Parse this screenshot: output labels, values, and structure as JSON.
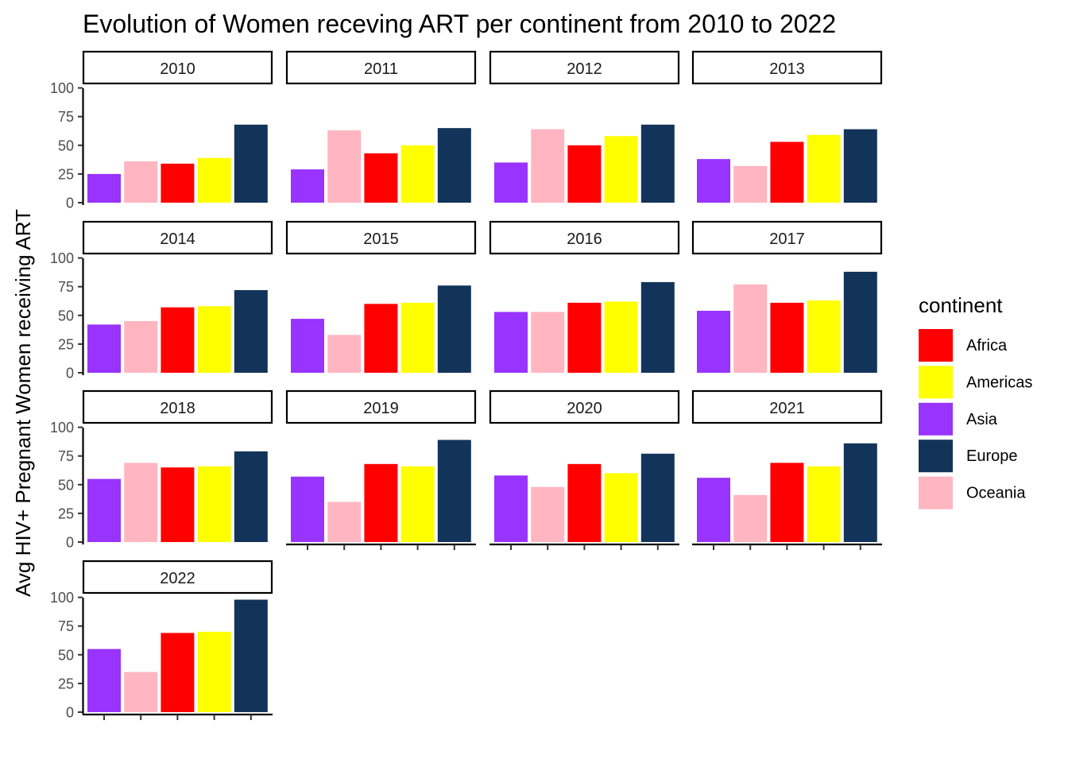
{
  "chart_data": {
    "type": "bar",
    "title": "Evolution of Women receving ART per continent from 2010 to 2022",
    "ylabel": "Avg HIV+ Pregnant Women receiving ART",
    "xlabel": "",
    "ylim": [
      0,
      100
    ],
    "yticks": [
      0,
      25,
      50,
      75,
      100
    ],
    "legend": {
      "title": "continent",
      "placement": "right",
      "items": [
        {
          "name": "Africa",
          "color": "#FF0000"
        },
        {
          "name": "Americas",
          "color": "#FFFF00"
        },
        {
          "name": "Asia",
          "color": "#9933FF"
        },
        {
          "name": "Europe",
          "color": "#13345A"
        },
        {
          "name": "Oceania",
          "color": "#FFB6C1"
        }
      ]
    },
    "bar_order": [
      "Asia",
      "Oceania",
      "Africa",
      "Americas",
      "Europe"
    ],
    "facets": [
      {
        "label": "2010",
        "values": [
          25,
          36,
          34,
          39,
          68
        ]
      },
      {
        "label": "2011",
        "values": [
          29,
          63,
          43,
          50,
          65
        ]
      },
      {
        "label": "2012",
        "values": [
          35,
          64,
          50,
          58,
          68
        ]
      },
      {
        "label": "2013",
        "values": [
          38,
          32,
          53,
          59,
          64
        ]
      },
      {
        "label": "2014",
        "values": [
          42,
          45,
          57,
          58,
          72
        ]
      },
      {
        "label": "2015",
        "values": [
          47,
          33,
          60,
          61,
          76
        ]
      },
      {
        "label": "2016",
        "values": [
          53,
          53,
          61,
          62,
          79
        ]
      },
      {
        "label": "2017",
        "values": [
          54,
          77,
          61,
          63,
          88
        ]
      },
      {
        "label": "2018",
        "values": [
          55,
          69,
          65,
          66,
          79
        ]
      },
      {
        "label": "2019",
        "values": [
          57,
          35,
          68,
          66,
          89
        ]
      },
      {
        "label": "2020",
        "values": [
          58,
          48,
          68,
          60,
          77
        ]
      },
      {
        "label": "2021",
        "values": [
          56,
          41,
          69,
          66,
          86
        ]
      },
      {
        "label": "2022",
        "values": [
          55,
          35,
          69,
          70,
          98
        ]
      }
    ]
  }
}
